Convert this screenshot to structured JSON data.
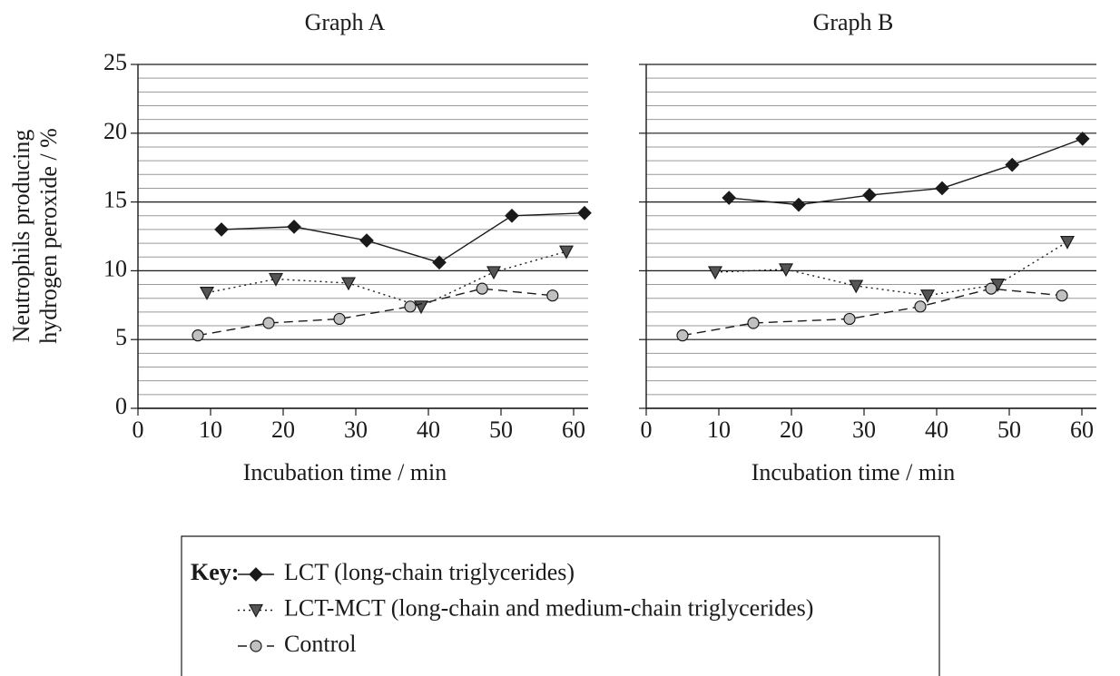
{
  "chart_data": [
    {
      "type": "line",
      "title": "Graph A",
      "xlabel": "Incubation time / min",
      "ylabel": [
        "Neutrophils producing",
        "hydrogen peroxide / %"
      ],
      "legend_title": "Key:",
      "xlim": [
        0,
        62
      ],
      "xticks": [
        0,
        10,
        20,
        30,
        40,
        50,
        60
      ],
      "ylim": [
        0,
        25
      ],
      "yticks": [
        0,
        5,
        10,
        15,
        20,
        25
      ],
      "grid": true,
      "minor_grid_step": 1,
      "series": [
        {
          "name": "LCT (long-chain triglycerides)",
          "color": "#1a1a1a",
          "marker": "diamond",
          "marker_color": "#1a1a1a",
          "linestyle": "solid",
          "x": [
            11.5,
            21.5,
            31.5,
            41.5,
            51.5,
            61.5
          ],
          "values": [
            13.0,
            13.2,
            12.2,
            10.6,
            14.0,
            14.2
          ]
        },
        {
          "name": "LCT-MCT (long-chain and medium-chain triglycerides)",
          "color": "#1a1a1a",
          "marker": "triangle-down",
          "marker_color": "#555555",
          "linestyle": "dotted",
          "x": [
            9.5,
            19,
            29,
            39,
            49,
            59
          ],
          "values": [
            8.4,
            9.4,
            9.1,
            7.4,
            9.9,
            11.4
          ]
        },
        {
          "name": "Control",
          "color": "#1a1a1a",
          "marker": "circle",
          "marker_color": "#c0c0c0",
          "linestyle": "dashed",
          "x": [
            8.25,
            18,
            27.75,
            37.5,
            47.4,
            57.1
          ],
          "values": [
            5.3,
            6.2,
            6.5,
            7.4,
            8.7,
            8.2
          ]
        }
      ]
    },
    {
      "type": "line",
      "title": "Graph B",
      "xlabel": "Incubation time / min",
      "xlim": [
        0,
        62
      ],
      "xticks": [
        0,
        10,
        20,
        30,
        40,
        50,
        60
      ],
      "ylim": [
        0,
        25
      ],
      "yticks": [
        0,
        5,
        10,
        15,
        20,
        25
      ],
      "grid": true,
      "minor_grid_step": 1,
      "series": [
        {
          "color": "#1a1a1a",
          "marker": "diamond",
          "marker_color": "#1a1a1a",
          "linestyle": "solid",
          "x": [
            11.4,
            21,
            30.75,
            40.75,
            50.4,
            60.1
          ],
          "values": [
            15.3,
            14.8,
            15.5,
            16.0,
            17.7,
            19.6
          ]
        },
        {
          "color": "#1a1a1a",
          "marker": "triangle-down",
          "marker_color": "#555555",
          "linestyle": "dotted",
          "x": [
            9.5,
            19.25,
            28.9,
            38.75,
            48.4,
            58
          ],
          "values": [
            9.9,
            10.1,
            8.9,
            8.2,
            9.0,
            12.1
          ]
        },
        {
          "color": "#1a1a1a",
          "marker": "circle",
          "marker_color": "#c0c0c0",
          "linestyle": "dashed",
          "x": [
            5,
            14.75,
            28,
            37.75,
            47.5,
            57.25
          ],
          "values": [
            5.3,
            6.2,
            6.5,
            7.4,
            8.7,
            8.2
          ]
        }
      ]
    }
  ]
}
